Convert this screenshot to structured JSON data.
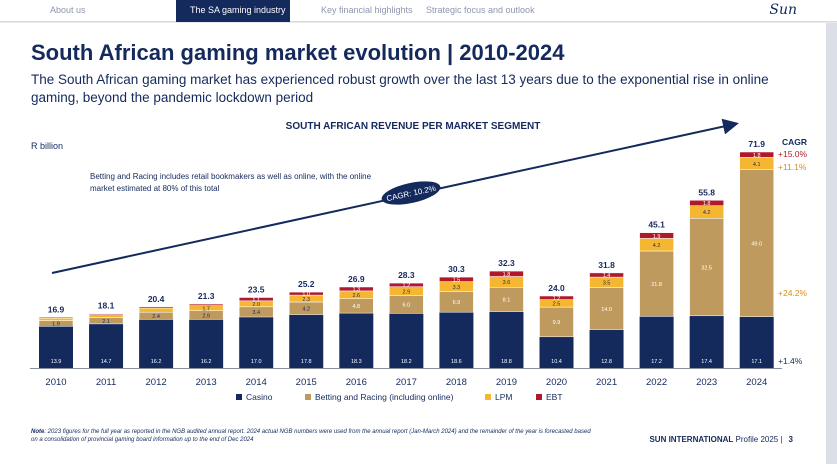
{
  "nav": {
    "tabs": [
      {
        "label": "About us",
        "active": false
      },
      {
        "label": "The SA gaming industry",
        "active": true
      },
      {
        "label": "Key financial highlights",
        "active": false
      },
      {
        "label": "Strategic focus and outlook",
        "active": false
      }
    ],
    "logo": "Sun"
  },
  "page": {
    "title": "South African gaming market evolution | 2010-2024",
    "subtitle": "The South African gaming market has experienced robust growth over the last 13 years due to the exponential rise in online gaming, beyond the pandemic lockdown period",
    "note": "Betting and Racing includes retail bookmakers as well as online, with the online market estimated at 80% of this total",
    "footnote_label": "Note",
    "footnote": ": 2023 figures for the full year as reported in the NGB audited annual report. 2024 actual NGB numbers were used from the annual report (Jan-March 2024) and the remainder of the year is forecasted based on a consolidation of provincial gaming board information up to the end of Dec 2024",
    "brand": "SUN INTERNATIONAL",
    "profile": "Profile 2025 |",
    "page_number": "3"
  },
  "colors": {
    "navy": "#14295c",
    "casino": "#14295c",
    "betting": "#bf9a5f",
    "lpm": "#f5b731",
    "ebt": "#b0192b",
    "cagr_red": "#b0192b",
    "cagr_gold": "#d98c1f"
  },
  "chart_data": {
    "type": "bar",
    "stacked": true,
    "title": "SOUTH AFRICAN REVENUE PER MARKET SEGMENT",
    "ylabel": "R billion",
    "categories": [
      "2010",
      "2011",
      "2012",
      "2013",
      "2014",
      "2015",
      "2016",
      "2017",
      "2018",
      "2019",
      "2020",
      "2021",
      "2022",
      "2023",
      "2024"
    ],
    "totals": [
      "16.9",
      "18.1",
      "20.4",
      "21.3",
      "23.5",
      "25.2",
      "26.9",
      "28.3",
      "30.3",
      "32.3",
      "24.0",
      "31.8",
      "45.1",
      "55.8",
      "71.9"
    ],
    "series": [
      {
        "name": "Casino",
        "color": "#14295c",
        "values": [
          13.9,
          14.7,
          16.2,
          16.2,
          17.0,
          17.8,
          18.3,
          18.2,
          18.6,
          18.8,
          10.4,
          12.8,
          17.2,
          17.4,
          17.1
        ],
        "labels": [
          "13.9",
          "14.7",
          "16.2",
          "16.2",
          "17.0",
          "17.8",
          "18.3",
          "18.2",
          "18.6",
          "18.8",
          "10.4",
          "12.8",
          "17.2",
          "17.4",
          "17.1"
        ]
      },
      {
        "name": "Betting and Racing (including online)",
        "color": "#bf9a5f",
        "values": [
          1.9,
          2.1,
          2.4,
          2.9,
          3.4,
          4.2,
          4.8,
          6.0,
          6.9,
          8.1,
          9.9,
          14.0,
          21.8,
          32.5,
          49.0
        ],
        "labels": [
          "1.9",
          "2.1",
          "2.4",
          "2.9",
          "3.4",
          "4.2",
          "4.8",
          "6.0",
          "6.9",
          "8.1",
          "9.9",
          "14.0",
          "21.8",
          "32.5",
          "49.0"
        ]
      },
      {
        "name": "LPM",
        "color": "#f5b731",
        "values": [
          0.8,
          1.0,
          1.4,
          1.7,
          2.0,
          2.3,
          2.6,
          2.9,
          3.3,
          3.6,
          2.5,
          3.5,
          4.2,
          4.2,
          4.1
        ],
        "labels": [
          "",
          "",
          "",
          "1.7",
          "2.0",
          "2.3",
          "2.6",
          "2.9",
          "3.3",
          "3.6",
          "2.5",
          "3.5",
          "4.2",
          "4.2",
          "4.1"
        ]
      },
      {
        "name": "EBT",
        "color": "#b0192b",
        "values": [
          0.3,
          0.3,
          0.4,
          0.5,
          1.1,
          1.0,
          1.3,
          1.2,
          1.5,
          1.8,
          1.2,
          1.4,
          1.9,
          1.8,
          1.8
        ],
        "labels": [
          "",
          "",
          "",
          "",
          "1.1",
          "1.0",
          "1.3",
          "1.2",
          "1.5",
          "1.8",
          "1.2",
          "1.4",
          "1.9",
          "1.8",
          "1.8"
        ]
      }
    ],
    "ylim": [
      0,
      75
    ],
    "cagr_arrow_label": "CAGR: 10.2%",
    "cagr_header": "CAGR",
    "cagr_values": [
      {
        "label": "+15.0%",
        "segment": "EBT",
        "color": "#b0192b"
      },
      {
        "label": "+11.1%",
        "segment": "LPM",
        "color": "#d98c1f"
      },
      {
        "label": "+24.2%",
        "segment": "Betting and Racing (including online)",
        "color": "#d98c1f"
      },
      {
        "label": "+1.4%",
        "segment": "Casino",
        "color": "#14295c"
      }
    ],
    "legend_position": "bottom"
  }
}
